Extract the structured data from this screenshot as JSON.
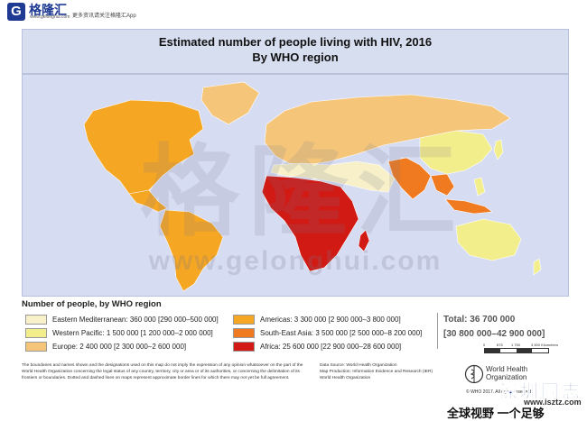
{
  "header": {
    "logo_glyph": "G",
    "brand_name": "格隆汇",
    "brand_url": "www.gelonghui.com",
    "slogan": "更多资讯请关注格隆汇App"
  },
  "title": {
    "line1": "Estimated number of people living with HIV, 2016",
    "line2": "By WHO region"
  },
  "watermark": {
    "chinese": "格隆汇",
    "url": "www.gelonghui.com"
  },
  "legend": {
    "title": "Number of people, by WHO region",
    "items": [
      {
        "label": "Eastern Mediterranean: 360 000 [290 000–500 000]",
        "color": "#f7f0c9"
      },
      {
        "label": "Western Pacific: 1 500 000 [1 200 000–2 000 000]",
        "color": "#f3ee8c"
      },
      {
        "label": "Europe: 2 400 000 [2 300 000–2 600 000]",
        "color": "#f5c67a"
      },
      {
        "label": "Americas: 3 300 000 [2 900 000–3 800 000]",
        "color": "#f5a623"
      },
      {
        "label": "South-East Asia: 3 500 000 [2 500 000–8 200 000]",
        "color": "#f07a1f"
      },
      {
        "label": "Africa: 25 600 000 [22 900 000–28 600 000]",
        "color": "#d11a14"
      }
    ],
    "total": "Total: 36 700 000",
    "total_range": "[30 800 000–42 900 000]"
  },
  "scale": {
    "labels": [
      "0",
      "875",
      "1 750",
      "3 500 Kilometers"
    ]
  },
  "footer": {
    "disclaimer": "The boundaries and names shown and the designations used on this map do not imply the expression of any opinion whatsoever on the part of the World Health Organization concerning the legal status of any country, territory, city or area or of its authorities, or concerning the delimitation of its frontiers or boundaries. Dotted and dashed lines on maps represent approximate border lines for which there may not yet be full agreement.",
    "source_line1": "Data Source: World Health Organization",
    "source_line2": "Map Production: Information Evidence and Research (IER)",
    "source_line3": "World Health Organization",
    "who_line1": "World Health",
    "who_line2": "Organization",
    "copyright": "© WHO 2017. All rights reserved."
  },
  "stamps": {
    "site_cn": "深圳同志",
    "site_url": "www.isztz.com",
    "slogan_cn": "全球视野 一个足够"
  },
  "map": {
    "colors": {
      "ocean": "#d6dcf2",
      "border": "#ffffff"
    }
  }
}
